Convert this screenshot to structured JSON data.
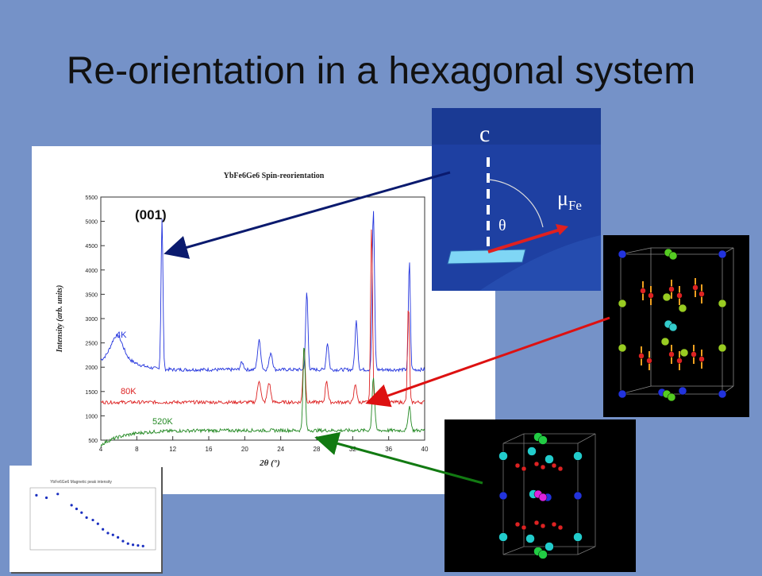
{
  "slide": {
    "title": "Re-orientation in a hexagonal system"
  },
  "chart_data": {
    "type": "line",
    "title": "YbFe6Ge6  Spin-reorientation",
    "xlabel": "2θ (°)",
    "ylabel": "Intensity (arb. units)",
    "xlim": [
      4,
      40
    ],
    "ylim": [
      500,
      5500
    ],
    "x_ticks": [
      "4",
      "8",
      "12",
      "16",
      "20",
      "24",
      "28",
      "32",
      "36",
      "40"
    ],
    "y_ticks": [
      "500",
      "1000",
      "1500",
      "2000",
      "2500",
      "3000",
      "3500",
      "4000",
      "4500",
      "5000",
      "5500"
    ],
    "annotation": "(001)",
    "series": [
      {
        "name": "4K",
        "color": "#2233dd",
        "baseline": 1950,
        "peaks": [
          [
            5.8,
            450,
            0.9
          ],
          [
            10.8,
            3100,
            0.15
          ],
          [
            19.7,
            150,
            0.25
          ],
          [
            21.6,
            600,
            0.25
          ],
          [
            22.9,
            350,
            0.25
          ],
          [
            26.9,
            1600,
            0.18
          ],
          [
            29.2,
            550,
            0.2
          ],
          [
            32.4,
            1000,
            0.2
          ],
          [
            34.3,
            3300,
            0.18
          ],
          [
            38.3,
            2250,
            0.15
          ]
        ]
      },
      {
        "name": "80K",
        "color": "#dd2222",
        "baseline": 1280,
        "peaks": [
          [
            21.6,
            450,
            0.25
          ],
          [
            22.7,
            400,
            0.25
          ],
          [
            26.6,
            1150,
            0.18
          ],
          [
            29.1,
            450,
            0.2
          ],
          [
            32.3,
            380,
            0.2
          ],
          [
            34.1,
            3650,
            0.15
          ],
          [
            38.2,
            2000,
            0.15
          ]
        ]
      },
      {
        "name": "520K",
        "color": "#228822",
        "baseline": 700,
        "peaks": [
          [
            26.6,
            1750,
            0.18
          ],
          [
            34.3,
            1100,
            0.2
          ],
          [
            38.3,
            500,
            0.2
          ]
        ]
      }
    ]
  },
  "inset": {
    "c_label": "c",
    "mu_label": "μ",
    "mu_sub": "Fe",
    "theta_label": "θ"
  },
  "mini_chart": {
    "title": "YbFe6Ge6 Magnetic peak intensity",
    "points": [
      [
        0.05,
        0.88
      ],
      [
        0.13,
        0.84
      ],
      [
        0.22,
        0.9
      ],
      [
        0.33,
        0.72
      ],
      [
        0.37,
        0.66
      ],
      [
        0.41,
        0.6
      ],
      [
        0.45,
        0.52
      ],
      [
        0.5,
        0.48
      ],
      [
        0.54,
        0.42
      ],
      [
        0.58,
        0.33
      ],
      [
        0.62,
        0.27
      ],
      [
        0.66,
        0.24
      ],
      [
        0.7,
        0.2
      ],
      [
        0.74,
        0.14
      ],
      [
        0.78,
        0.1
      ],
      [
        0.82,
        0.08
      ],
      [
        0.86,
        0.07
      ],
      [
        0.9,
        0.06
      ]
    ]
  }
}
